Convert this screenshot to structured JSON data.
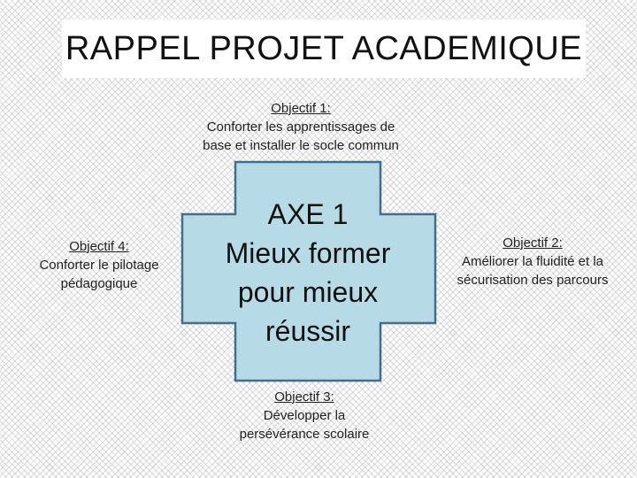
{
  "title": "RAPPEL PROJET ACADEMIQUE",
  "axis": {
    "line1": "AXE 1",
    "line2": "Mieux former",
    "line3": "pour mieux",
    "line4": "réussir"
  },
  "objectives": {
    "obj1": {
      "title": "Objectif 1:",
      "line1": "Conforter les apprentissages de",
      "line2": "base et installer le socle commun"
    },
    "obj2": {
      "title": "Objectif 2:",
      "line1": "Améliorer la fluidité et la",
      "line2": "sécurisation des parcours"
    },
    "obj3": {
      "title": "Objectif 3:",
      "line1": "Développer la",
      "line2": "persévérance scolaire"
    },
    "obj4": {
      "title": "Objectif 4:",
      "line1": "Conforter le pilotage",
      "line2": "pédagogique"
    }
  },
  "colors": {
    "cross_fill": "#b7dbe6",
    "cross_stroke": "#3f6f8c"
  }
}
